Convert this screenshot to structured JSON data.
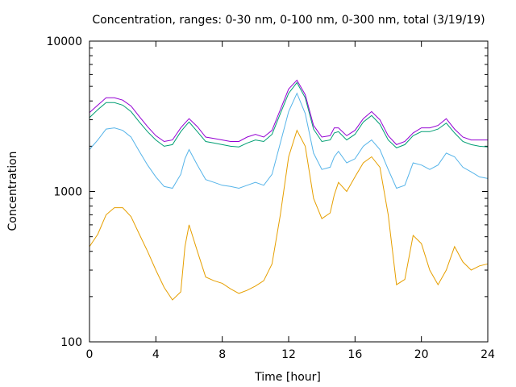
{
  "chart_data": {
    "type": "line",
    "title": "Concentration, ranges: 0-30 nm, 0-100 nm, 0-300 nm, total (3/19/19)",
    "xlabel": "Time [hour]",
    "ylabel": "Concentration",
    "xlim": [
      0,
      24
    ],
    "ylim": [
      100,
      10000
    ],
    "yscale": "log",
    "xticks": [
      0,
      4,
      8,
      12,
      16,
      20,
      24
    ],
    "xtick_labels": [
      "0",
      "4",
      "8",
      "12",
      "16",
      "20",
      "24"
    ],
    "yticks": [
      100,
      1000,
      10000
    ],
    "ytick_labels": [
      "100",
      "1000",
      "10000"
    ],
    "grid": false,
    "legend": "none",
    "x": [
      0,
      0.5,
      1,
      1.5,
      2,
      2.5,
      3,
      3.5,
      4,
      4.5,
      5,
      5.5,
      5.75,
      6,
      6.5,
      7,
      7.5,
      8,
      8.5,
      9,
      9.5,
      10,
      10.5,
      11,
      11.5,
      12,
      12.5,
      13,
      13.5,
      14,
      14.5,
      14.75,
      15,
      15.5,
      16,
      16.5,
      17,
      17.5,
      18,
      18.5,
      19,
      19.5,
      20,
      20.5,
      21,
      21.5,
      22,
      22.5,
      23,
      23.5,
      24
    ],
    "series": [
      {
        "color": "#e69f00",
        "values": [
          430,
          520,
          700,
          780,
          780,
          680,
          520,
          400,
          300,
          230,
          190,
          215,
          430,
          600,
          400,
          270,
          255,
          245,
          225,
          210,
          220,
          235,
          255,
          330,
          700,
          1700,
          2550,
          2000,
          900,
          660,
          720,
          950,
          1150,
          1000,
          1250,
          1550,
          1700,
          1450,
          700,
          240,
          260,
          510,
          450,
          300,
          240,
          300,
          430,
          340,
          300,
          320,
          330
        ]
      },
      {
        "color": "#56b4e9",
        "values": [
          1900,
          2200,
          2600,
          2650,
          2550,
          2300,
          1850,
          1500,
          1250,
          1080,
          1050,
          1300,
          1650,
          1900,
          1500,
          1200,
          1150,
          1100,
          1080,
          1050,
          1100,
          1150,
          1100,
          1300,
          2100,
          3400,
          4500,
          3300,
          1800,
          1400,
          1450,
          1700,
          1850,
          1550,
          1650,
          2000,
          2200,
          1900,
          1400,
          1050,
          1100,
          1550,
          1500,
          1400,
          1500,
          1800,
          1700,
          1450,
          1350,
          1250,
          1220
        ]
      },
      {
        "color": "#009e73",
        "values": [
          3100,
          3500,
          3900,
          3900,
          3750,
          3400,
          2900,
          2500,
          2200,
          2000,
          2050,
          2500,
          2700,
          2900,
          2500,
          2150,
          2100,
          2050,
          2000,
          1980,
          2100,
          2200,
          2150,
          2400,
          3300,
          4500,
          5300,
          4200,
          2600,
          2150,
          2200,
          2450,
          2500,
          2200,
          2400,
          2900,
          3200,
          2800,
          2200,
          1950,
          2050,
          2350,
          2500,
          2500,
          2600,
          2850,
          2450,
          2150,
          2050,
          2000,
          1980
        ]
      },
      {
        "color": "#9400d3",
        "values": [
          3350,
          3750,
          4200,
          4200,
          4050,
          3700,
          3150,
          2700,
          2350,
          2150,
          2200,
          2650,
          2850,
          3050,
          2700,
          2300,
          2250,
          2200,
          2150,
          2150,
          2300,
          2400,
          2300,
          2550,
          3500,
          4800,
          5500,
          4400,
          2750,
          2300,
          2350,
          2650,
          2650,
          2350,
          2550,
          3050,
          3400,
          3000,
          2350,
          2050,
          2150,
          2450,
          2650,
          2650,
          2750,
          3050,
          2600,
          2300,
          2200,
          2200,
          2200
        ]
      }
    ]
  }
}
